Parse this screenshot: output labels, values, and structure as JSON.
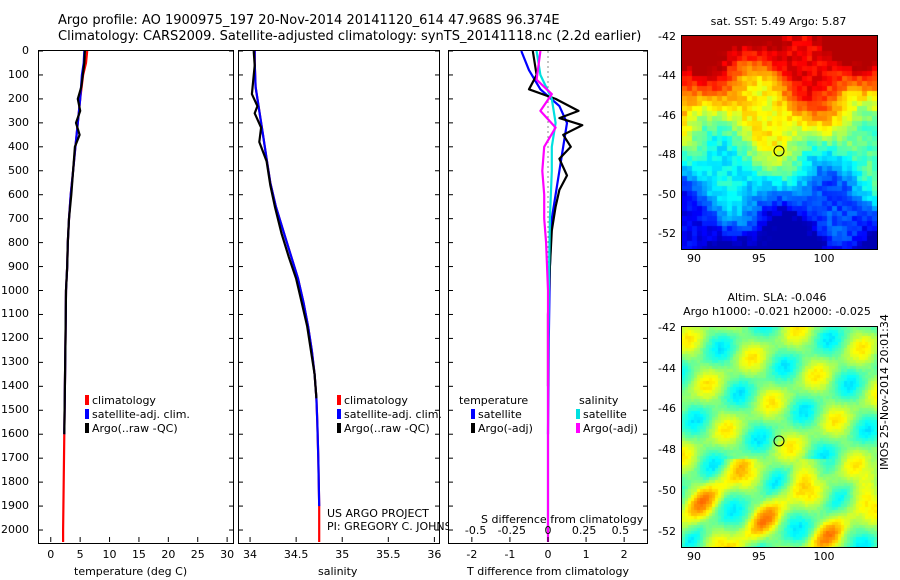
{
  "header": {
    "line1": "Argo profile: AO 1900975_197 20-Nov-2014 20141120_614 47.968S 96.374E",
    "line2": "Climatology: CARS2009. Satellite-adjusted climatology: synTS_20141118.nc (2.2d earlier)"
  },
  "depth_ticks": [
    "0",
    "100",
    "200",
    "300",
    "400",
    "500",
    "600",
    "700",
    "800",
    "900",
    "1000",
    "1100",
    "1200",
    "1300",
    "1400",
    "1500",
    "1600",
    "1700",
    "1800",
    "1900",
    "2000"
  ],
  "temperature_panel": {
    "xlabel": "temperature (deg C)",
    "xticks": [
      "0",
      "5",
      "10",
      "15",
      "20",
      "25",
      "30"
    ],
    "legend": [
      {
        "label": "climatology",
        "color": "#ff0000"
      },
      {
        "label": "satellite-adj. clim.",
        "color": "#0000ff"
      },
      {
        "label": "Argo(..raw -QC)",
        "color": "#000000"
      }
    ]
  },
  "salinity_panel": {
    "xlabel": "salinity",
    "xticks": [
      "34",
      "34.5",
      "35",
      "35.5",
      "36"
    ],
    "legend": [
      {
        "label": "climatology",
        "color": "#ff0000"
      },
      {
        "label": "satellite-adj. clim.",
        "color": "#0000ff"
      },
      {
        "label": "Argo(..raw -QC)",
        "color": "#000000"
      }
    ],
    "credit1": "US ARGO PROJECT",
    "credit2": "PI: GREGORY C. JOHNSON"
  },
  "difference_panel": {
    "xlabel": "T difference from climatology",
    "xlabel_top": "S difference from climatology",
    "xticks": [
      "-2",
      "-1",
      "0",
      "1",
      "2"
    ],
    "xticks_top": [
      "-0.5",
      "-0.25",
      "0",
      "0.25",
      "0.5"
    ],
    "legend_temp_title": "temperature",
    "legend_sal_title": "salinity",
    "legend_temp": [
      {
        "label": "satellite",
        "color": "#0000ff"
      },
      {
        "label": "Argo(-adj)",
        "color": "#000000"
      }
    ],
    "legend_sal": [
      {
        "label": "satellite",
        "color": "#00e0e0"
      },
      {
        "label": "Argo(-adj)",
        "color": "#ff00ff"
      }
    ]
  },
  "sst_map": {
    "title": "sat. SST: 5.49 Argo: 5.87",
    "yticks": [
      "-42",
      "-44",
      "-46",
      "-48",
      "-50",
      "-52"
    ],
    "xticks": [
      "90",
      "95",
      "100"
    ]
  },
  "sla_map": {
    "title1": "Altim. SLA: -0.046",
    "title2": "Argo h1000: -0.021 h2000: -0.025",
    "yticks": [
      "-42",
      "-44",
      "-46",
      "-48",
      "-50",
      "-52"
    ],
    "xticks": [
      "90",
      "95",
      "100"
    ],
    "stamp": "IMOS 25-Nov-2014 20:01:34"
  },
  "chart_data": [
    {
      "type": "line",
      "xlabel": "temperature (deg C)",
      "ylabel": "",
      "xlim": [
        -2,
        31
      ],
      "ylim": [
        2050,
        0
      ],
      "series": [
        {
          "name": "climatology",
          "color": "#ff0000",
          "points": [
            [
              6.2,
              0
            ],
            [
              6.0,
              50
            ],
            [
              5.5,
              100
            ],
            [
              5.0,
              200
            ],
            [
              4.6,
              300
            ],
            [
              4.2,
              400
            ],
            [
              3.8,
              500
            ],
            [
              3.4,
              600
            ],
            [
              3.1,
              700
            ],
            [
              2.9,
              800
            ],
            [
              2.8,
              900
            ],
            [
              2.6,
              1000
            ],
            [
              2.5,
              1200
            ],
            [
              2.4,
              1400
            ],
            [
              2.3,
              1600
            ],
            [
              2.2,
              1800
            ],
            [
              2.1,
              2000
            ],
            [
              2.1,
              2050
            ]
          ]
        },
        {
          "name": "satellite-adj. clim.",
          "color": "#0000ff",
          "points": [
            [
              5.7,
              0
            ],
            [
              5.6,
              50
            ],
            [
              5.3,
              100
            ],
            [
              5.0,
              200
            ],
            [
              4.6,
              300
            ],
            [
              4.2,
              400
            ],
            [
              3.8,
              500
            ],
            [
              3.4,
              600
            ],
            [
              3.1,
              700
            ],
            [
              2.9,
              800
            ],
            [
              2.8,
              900
            ],
            [
              2.6,
              1000
            ],
            [
              2.5,
              1200
            ],
            [
              2.4,
              1400
            ],
            [
              2.3,
              1600
            ]
          ]
        },
        {
          "name": "Argo(..raw -QC)",
          "color": "#000000",
          "points": [
            [
              5.8,
              0
            ],
            [
              5.7,
              50
            ],
            [
              5.2,
              150
            ],
            [
              4.6,
              200
            ],
            [
              5.0,
              250
            ],
            [
              4.3,
              300
            ],
            [
              4.9,
              350
            ],
            [
              4.1,
              400
            ],
            [
              3.8,
              500
            ],
            [
              3.5,
              600
            ],
            [
              3.1,
              700
            ],
            [
              2.9,
              800
            ],
            [
              2.8,
              900
            ],
            [
              2.6,
              1000
            ],
            [
              2.5,
              1200
            ],
            [
              2.4,
              1400
            ],
            [
              2.3,
              1600
            ]
          ]
        }
      ]
    },
    {
      "type": "line",
      "xlabel": "salinity",
      "ylabel": "",
      "xlim": [
        33.88,
        36.05
      ],
      "ylim": [
        2050,
        0
      ],
      "series": [
        {
          "name": "climatology",
          "color": "#ff0000",
          "points": [
            [
              34.05,
              0
            ],
            [
              34.05,
              50
            ],
            [
              34.06,
              150
            ],
            [
              34.1,
              250
            ],
            [
              34.14,
              350
            ],
            [
              34.18,
              450
            ],
            [
              34.22,
              550
            ],
            [
              34.28,
              650
            ],
            [
              34.36,
              750
            ],
            [
              34.44,
              850
            ],
            [
              34.52,
              950
            ],
            [
              34.58,
              1050
            ],
            [
              34.63,
              1150
            ],
            [
              34.67,
              1250
            ],
            [
              34.7,
              1350
            ],
            [
              34.72,
              1450
            ],
            [
              34.73,
              1550
            ],
            [
              34.74,
              1700
            ],
            [
              34.75,
              1900
            ],
            [
              34.75,
              2050
            ]
          ]
        },
        {
          "name": "satellite-adj. clim.",
          "color": "#0000ff",
          "points": [
            [
              34.05,
              0
            ],
            [
              34.05,
              50
            ],
            [
              34.06,
              150
            ],
            [
              34.1,
              250
            ],
            [
              34.14,
              350
            ],
            [
              34.18,
              450
            ],
            [
              34.22,
              550
            ],
            [
              34.28,
              650
            ],
            [
              34.36,
              750
            ],
            [
              34.44,
              850
            ],
            [
              34.52,
              950
            ],
            [
              34.58,
              1050
            ],
            [
              34.63,
              1150
            ],
            [
              34.67,
              1250
            ],
            [
              34.7,
              1350
            ],
            [
              34.72,
              1450
            ],
            [
              34.73,
              1550
            ],
            [
              34.74,
              1700
            ],
            [
              34.75,
              1900
            ]
          ]
        },
        {
          "name": "Argo(..raw -QC)",
          "color": "#000000",
          "points": [
            [
              34.04,
              0
            ],
            [
              34.05,
              60
            ],
            [
              34.02,
              180
            ],
            [
              34.08,
              230
            ],
            [
              34.05,
              260
            ],
            [
              34.12,
              320
            ],
            [
              34.1,
              380
            ],
            [
              34.18,
              460
            ],
            [
              34.22,
              560
            ],
            [
              34.27,
              650
            ],
            [
              34.34,
              760
            ],
            [
              34.42,
              860
            ],
            [
              34.5,
              950
            ],
            [
              34.56,
              1050
            ],
            [
              34.62,
              1150
            ],
            [
              34.66,
              1250
            ],
            [
              34.7,
              1350
            ],
            [
              34.72,
              1450
            ]
          ]
        }
      ]
    },
    {
      "type": "line",
      "xlabel": "T difference from climatology",
      "xlabel_top": "S difference from climatology",
      "xlim": [
        -2.6,
        2.6
      ],
      "ylim": [
        2050,
        0
      ],
      "series": [
        {
          "name": "temperature satellite",
          "color": "#0000ff",
          "points": [
            [
              -0.7,
              0
            ],
            [
              -0.5,
              80
            ],
            [
              -0.2,
              160
            ],
            [
              0.3,
              230
            ],
            [
              0.5,
              300
            ],
            [
              0.4,
              400
            ],
            [
              0.3,
              500
            ],
            [
              0.2,
              600
            ],
            [
              0.1,
              700
            ],
            [
              0.05,
              900
            ],
            [
              0.02,
              1200
            ],
            [
              0.0,
              1600
            ]
          ]
        },
        {
          "name": "temperature Argo(-adj)",
          "color": "#000000",
          "points": [
            [
              -0.4,
              0
            ],
            [
              -0.3,
              100
            ],
            [
              -0.5,
              160
            ],
            [
              0.2,
              200
            ],
            [
              0.8,
              250
            ],
            [
              0.3,
              280
            ],
            [
              0.9,
              310
            ],
            [
              0.4,
              350
            ],
            [
              0.6,
              400
            ],
            [
              0.3,
              450
            ],
            [
              0.5,
              520
            ],
            [
              0.3,
              580
            ],
            [
              0.2,
              650
            ],
            [
              0.1,
              750
            ],
            [
              0.05,
              900
            ],
            [
              0.0,
              1100
            ],
            [
              0.0,
              1400
            ]
          ]
        },
        {
          "name": "salinity satellite",
          "color": "#00e0e0",
          "points": [
            [
              -0.3,
              0
            ],
            [
              -0.2,
              100
            ],
            [
              0.1,
              200
            ],
            [
              0.2,
              300
            ],
            [
              0.1,
              400
            ],
            [
              0.1,
              500
            ],
            [
              0.05,
              700
            ],
            [
              0.02,
              1000
            ],
            [
              0.0,
              1400
            ],
            [
              0.0,
              1700
            ],
            [
              0.0,
              2000
            ]
          ]
        },
        {
          "name": "salinity Argo(-adj)",
          "color": "#ff00ff",
          "points": [
            [
              -0.2,
              0
            ],
            [
              -0.3,
              120
            ],
            [
              0.1,
              180
            ],
            [
              -0.2,
              250
            ],
            [
              0.2,
              320
            ],
            [
              -0.1,
              400
            ],
            [
              -0.15,
              500
            ],
            [
              -0.1,
              600
            ],
            [
              -0.1,
              700
            ],
            [
              -0.05,
              800
            ],
            [
              0.0,
              1000
            ],
            [
              0.0,
              1400
            ],
            [
              0.0,
              1800
            ],
            [
              0.0,
              2050
            ]
          ]
        }
      ]
    }
  ]
}
